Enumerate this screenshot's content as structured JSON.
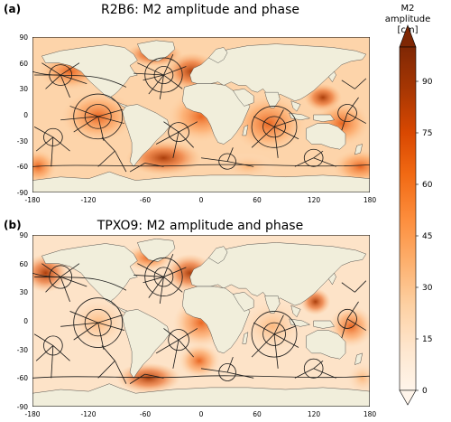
{
  "colors": {
    "land": "#f1eedb",
    "contour": "#1a1a1a",
    "frame": "#000000",
    "colormap_Oranges": [
      "#fff5eb",
      "#fee6ce",
      "#fdd0a2",
      "#fdae6b",
      "#fd8d3c",
      "#f16913",
      "#d94801",
      "#a63603",
      "#7f2704"
    ]
  },
  "panels": [
    {
      "label": "(a)",
      "title": "R2B6: M2 amplitude and phase",
      "xticks": [
        "-180",
        "-120",
        "-60",
        "0",
        "60",
        "120",
        "180"
      ],
      "yticks": [
        "90",
        "60",
        "30",
        "0",
        "-30",
        "-60",
        "-90"
      ]
    },
    {
      "label": "(b)",
      "title": "TPXO9: M2 amplitude and phase",
      "xticks": [
        "-180",
        "-120",
        "-60",
        "0",
        "60",
        "120",
        "180"
      ],
      "yticks": [
        "90",
        "60",
        "30",
        "0",
        "-30",
        "-60",
        "-90"
      ]
    }
  ],
  "colorbar": {
    "title_line1": "M2",
    "title_line2": "amplitude",
    "title_line3": "[cm]",
    "ticks": [
      "90",
      "75",
      "60",
      "45",
      "30",
      "15",
      "0"
    ],
    "range": [
      0,
      100
    ],
    "extend": "max"
  }
}
